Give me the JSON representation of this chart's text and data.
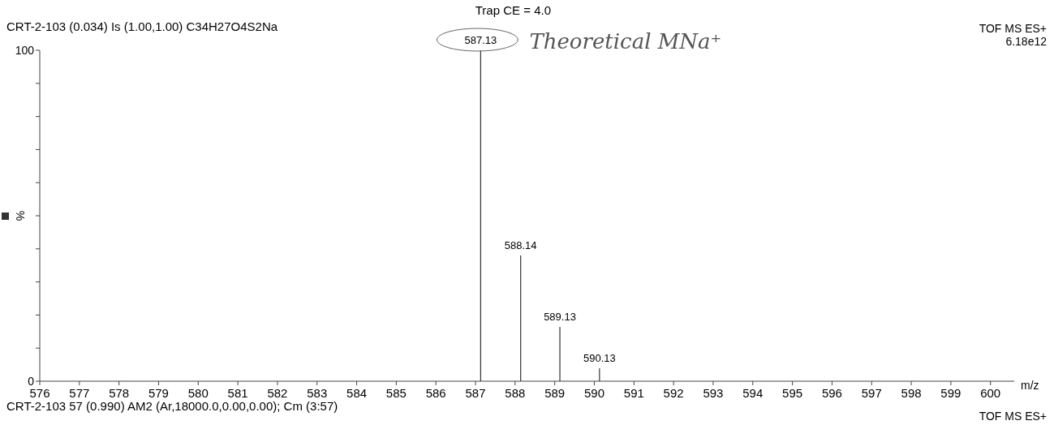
{
  "chart_data": {
    "type": "bar",
    "title": "CRT-2-103  (0.034) Is (1.00,1.00) C34H27O4S2Na",
    "xlabel": "m/z",
    "ylabel": "%",
    "x": [
      587.13,
      588.14,
      589.13,
      590.13
    ],
    "values": [
      100,
      38,
      16.4,
      3.9
    ],
    "color": "#333333",
    "xlim": [
      576,
      600.6
    ],
    "xticks": [
      576,
      577,
      578,
      579,
      580,
      581,
      582,
      583,
      584,
      585,
      586,
      587,
      588,
      589,
      590,
      591,
      592,
      593,
      594,
      595,
      596,
      597,
      598,
      599,
      600
    ],
    "ylim": [
      0,
      100
    ],
    "yticks": [
      0,
      {
        "value": 10,
        "label": null
      },
      {
        "value": 20,
        "label": null
      },
      {
        "value": 30,
        "label": null
      },
      {
        "value": 40,
        "label": null
      },
      {
        "value": 50,
        "label": null
      },
      {
        "value": 60,
        "label": null
      },
      {
        "value": 70,
        "label": null
      },
      {
        "value": 80,
        "label": null
      },
      {
        "value": 90,
        "label": null
      },
      100
    ],
    "grid": false,
    "annotations": [
      {
        "text": "587.13",
        "x": 587.13,
        "y": 100
      },
      {
        "text": "588.14",
        "x": 588.14,
        "y": 38
      },
      {
        "text": "589.13",
        "x": 589.13,
        "y": 16.4
      },
      {
        "text": "590.13",
        "x": 590.13,
        "y": 3.9
      },
      {
        "text": "Theoretical MNa⁺",
        "x": 587.13,
        "y": 100
      },
      "Trap CE = 4.0",
      "TOF MS ES+",
      "6.18e12",
      "CRT-2-103 57 (0.990) AM2 (Ar,18000.0,0.00,0.00); Cm (3:57)",
      "TOF MS ES+"
    ]
  }
}
